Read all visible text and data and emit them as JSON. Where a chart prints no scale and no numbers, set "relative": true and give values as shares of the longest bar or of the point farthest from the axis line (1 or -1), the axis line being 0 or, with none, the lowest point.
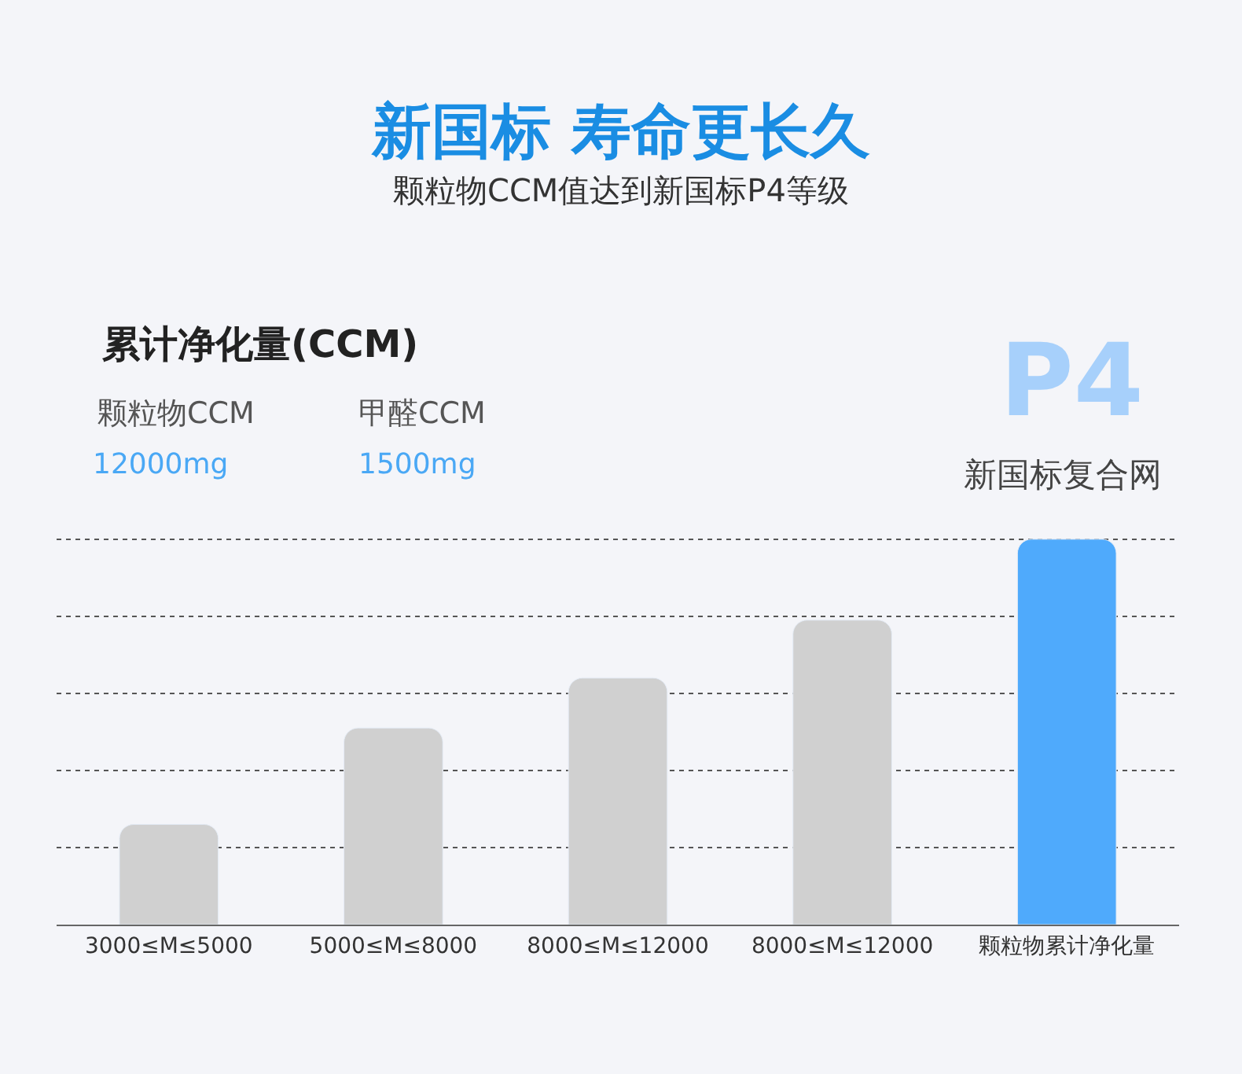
{
  "chart_data": {
    "type": "bar",
    "title": "新国标 寿命更长久",
    "subtitle": "颗粒物CCM值达到新国标P4等级",
    "categories": [
      "3000≤M≤5000",
      "5000≤M≤8000",
      "8000≤M≤12000",
      "8000≤M≤12000",
      "颗粒物累计净化量"
    ],
    "values": [
      0.26,
      0.51,
      0.64,
      0.79,
      1
    ],
    "colors": [
      "#d0d0d0",
      "#d0d0d0",
      "#d0d0d0",
      "#d0d0d0",
      "#4faafc"
    ],
    "relative": true,
    "grid": "y",
    "annotations": [
      "累计净化量(CCM)",
      "颗粒物CCM",
      "甲醛CCM",
      "12000mg",
      "1500mg",
      "P4",
      "新国标复合网"
    ]
  }
}
